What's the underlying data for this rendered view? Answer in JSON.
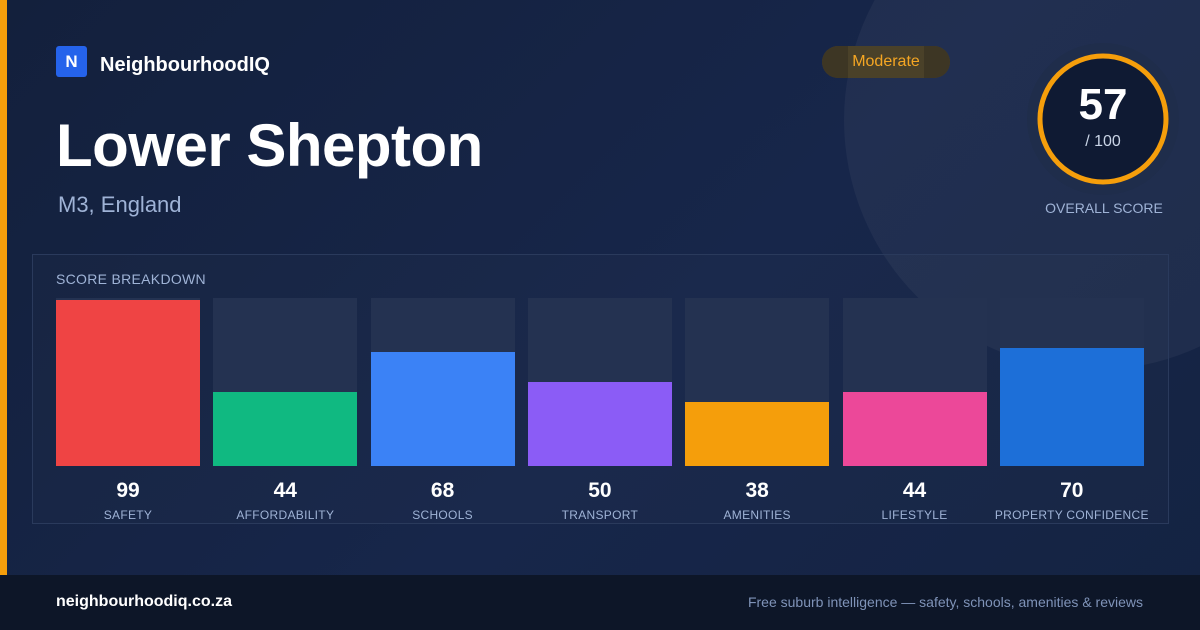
{
  "brand": {
    "logo_letter": "N",
    "name": "NeighbourhoodIQ"
  },
  "location": {
    "title": "Lower Shepton",
    "subtitle": "M3, England"
  },
  "rating": {
    "label": "Moderate",
    "color": "#f5a623"
  },
  "overall": {
    "score": "57",
    "max": "/ 100",
    "value": 57,
    "label": "OVERALL SCORE",
    "ring_color": "#f59e0b"
  },
  "breakdown": {
    "title": "SCORE BREAKDOWN",
    "items": [
      {
        "label": "SAFETY",
        "value": 99,
        "color": "#ef4444"
      },
      {
        "label": "AFFORDABILITY",
        "value": 44,
        "color": "#10b981"
      },
      {
        "label": "SCHOOLS",
        "value": 68,
        "color": "#3b82f6"
      },
      {
        "label": "TRANSPORT",
        "value": 50,
        "color": "#8b5cf6"
      },
      {
        "label": "AMENITIES",
        "value": 38,
        "color": "#f59e0b"
      },
      {
        "label": "LIFESTYLE",
        "value": 44,
        "color": "#ec4899"
      },
      {
        "label": "PROPERTY CONFIDENCE",
        "value": 70,
        "color": "#1d6fd8"
      }
    ]
  },
  "footer": {
    "url": "neighbourhoodiq.co.za",
    "tagline": "Free suburb intelligence — safety, schools, amenities & reviews"
  }
}
